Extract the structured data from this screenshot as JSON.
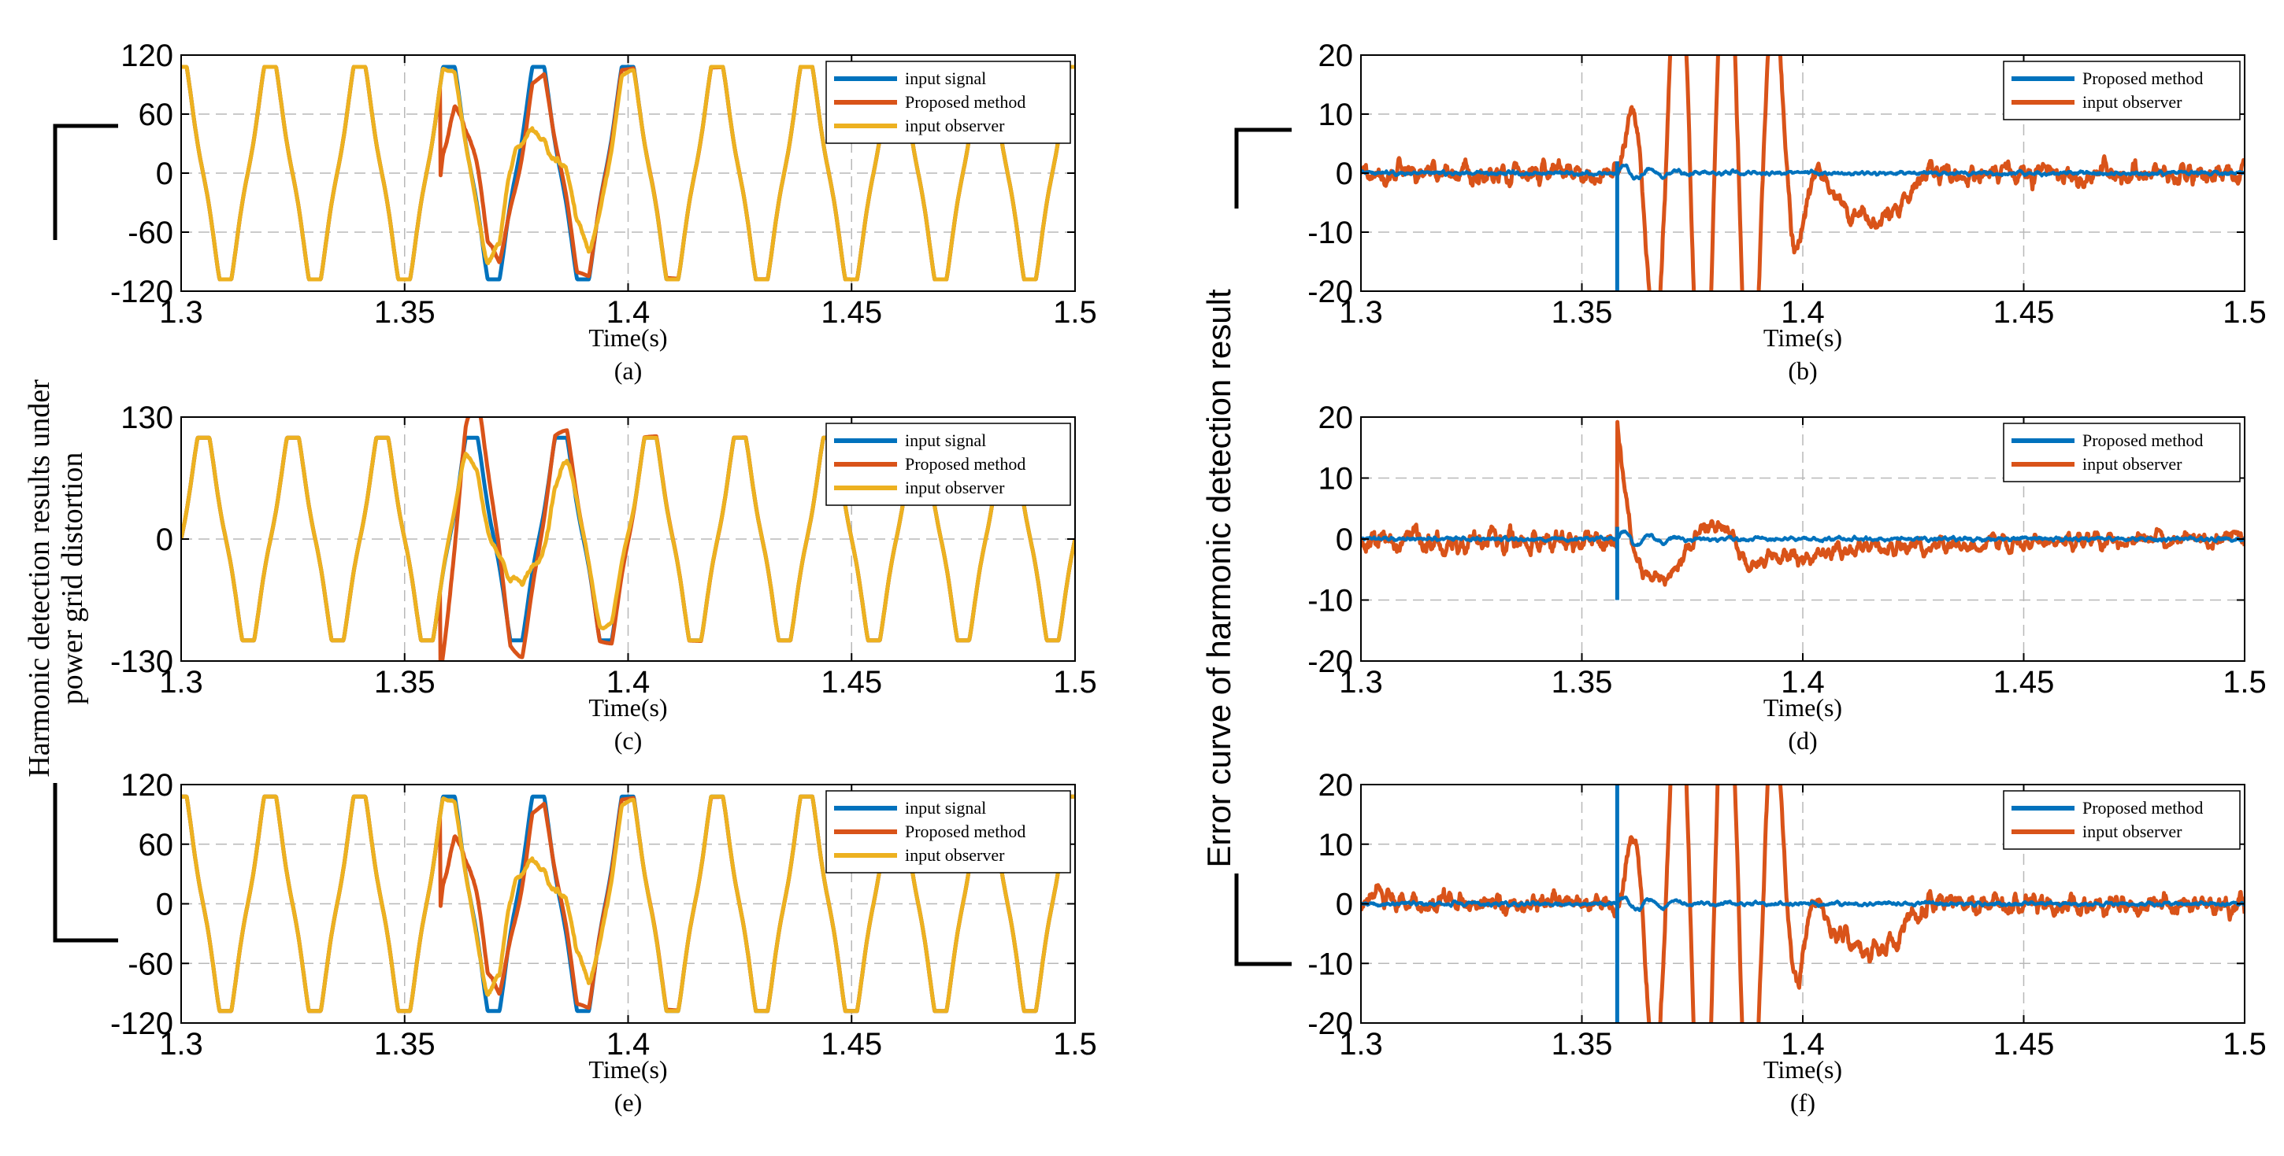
{
  "figure": {
    "left_ylabel_line1": "Harmonic detection results under",
    "left_ylabel_line2": "power grid distortion",
    "right_ylabel": "Error curve of harmonic detection result"
  },
  "colors": {
    "input_signal": "#0072BD",
    "proposed": "#D95319",
    "observer": "#EDB120",
    "grid": "#b8b8b8"
  },
  "chart_data": [
    {
      "id": "a",
      "panel_label": "(a)",
      "type": "line",
      "xlabel": "Time(s)",
      "xlim": [
        1.3,
        1.5
      ],
      "ylim": [
        -120,
        120
      ],
      "xticks": [
        1.3,
        1.35,
        1.4,
        1.45,
        1.5
      ],
      "xtick_labels": [
        "1.3",
        "1.35",
        "1.4",
        "1.45",
        "1.5"
      ],
      "yticks": [
        120,
        60,
        0,
        -60,
        -120
      ],
      "ytick_labels": [
        "120",
        "60",
        "0",
        "-60",
        "-120"
      ],
      "legend": [
        "input signal",
        "Proposed method",
        "input observer"
      ],
      "disturbance_time": 1.358,
      "signal_period": 0.02,
      "signal_amplitude": 108,
      "series": [
        {
          "name": "input signal",
          "color_key": "input_signal"
        },
        {
          "name": "Proposed method",
          "color_key": "proposed"
        },
        {
          "name": "input observer",
          "color_key": "observer"
        }
      ]
    },
    {
      "id": "b",
      "panel_label": "(b)",
      "type": "line",
      "xlabel": "Time(s)",
      "xlim": [
        1.3,
        1.5
      ],
      "ylim": [
        -20,
        20
      ],
      "xticks": [
        1.3,
        1.35,
        1.4,
        1.45,
        1.5
      ],
      "xtick_labels": [
        "1.3",
        "1.35",
        "1.4",
        "1.45",
        "1.5"
      ],
      "yticks": [
        20,
        10,
        0,
        -10,
        -20
      ],
      "ytick_labels": [
        "20",
        "10",
        "0",
        "-10",
        "-20"
      ],
      "legend": [
        "Proposed method",
        "input observer"
      ],
      "disturbance_time": 1.358,
      "series": [
        {
          "name": "Proposed method",
          "color_key": "input_signal"
        },
        {
          "name": "input observer",
          "color_key": "proposed"
        }
      ]
    },
    {
      "id": "c",
      "panel_label": "(c)",
      "type": "line",
      "xlabel": "Time(s)",
      "xlim": [
        1.3,
        1.5
      ],
      "ylim": [
        -130,
        130
      ],
      "xticks": [
        1.3,
        1.35,
        1.4,
        1.45,
        1.5
      ],
      "xtick_labels": [
        "1.3",
        "1.35",
        "1.4",
        "1.45",
        "1.5"
      ],
      "yticks": [
        130,
        0,
        -130
      ],
      "ytick_labels": [
        "130",
        "0",
        "-130"
      ],
      "legend": [
        "input signal",
        "Proposed method",
        "input observer"
      ],
      "disturbance_time": 1.358,
      "signal_period": 0.02,
      "signal_amplitude": 108,
      "series": [
        {
          "name": "input signal",
          "color_key": "input_signal"
        },
        {
          "name": "Proposed method",
          "color_key": "proposed"
        },
        {
          "name": "input observer",
          "color_key": "observer"
        }
      ]
    },
    {
      "id": "d",
      "panel_label": "(d)",
      "type": "line",
      "xlabel": "Time(s)",
      "xlim": [
        1.3,
        1.5
      ],
      "ylim": [
        -20,
        20
      ],
      "xticks": [
        1.3,
        1.35,
        1.4,
        1.45,
        1.5
      ],
      "xtick_labels": [
        "1.3",
        "1.35",
        "1.4",
        "1.45",
        "1.5"
      ],
      "yticks": [
        20,
        10,
        0,
        -10,
        -20
      ],
      "ytick_labels": [
        "20",
        "10",
        "0",
        "-10",
        "-20"
      ],
      "legend": [
        "Proposed method",
        "input observer"
      ],
      "disturbance_time": 1.358,
      "series": [
        {
          "name": "Proposed method",
          "color_key": "input_signal"
        },
        {
          "name": "input observer",
          "color_key": "proposed"
        }
      ]
    },
    {
      "id": "e",
      "panel_label": "(e)",
      "type": "line",
      "xlabel": "Time(s)",
      "xlim": [
        1.3,
        1.5
      ],
      "ylim": [
        -120,
        120
      ],
      "xticks": [
        1.3,
        1.35,
        1.4,
        1.45,
        1.5
      ],
      "xtick_labels": [
        "1.3",
        "1.35",
        "1.4",
        "1.45",
        "1.5"
      ],
      "yticks": [
        120,
        60,
        0,
        -60,
        -120
      ],
      "ytick_labels": [
        "120",
        "60",
        "0",
        "-60",
        "-120"
      ],
      "legend": [
        "input signal",
        "Proposed method",
        "input observer"
      ],
      "disturbance_time": 1.358,
      "signal_period": 0.02,
      "signal_amplitude": 108,
      "series": [
        {
          "name": "input signal",
          "color_key": "input_signal"
        },
        {
          "name": "Proposed method",
          "color_key": "proposed"
        },
        {
          "name": "input observer",
          "color_key": "observer"
        }
      ]
    },
    {
      "id": "f",
      "panel_label": "(f)",
      "type": "line",
      "xlabel": "Time(s)",
      "xlim": [
        1.3,
        1.5
      ],
      "ylim": [
        -20,
        20
      ],
      "xticks": [
        1.3,
        1.35,
        1.4,
        1.45,
        1.5
      ],
      "xtick_labels": [
        "1.3",
        "1.35",
        "1.4",
        "1.45",
        "1.5"
      ],
      "yticks": [
        20,
        10,
        0,
        -10,
        -20
      ],
      "ytick_labels": [
        "20",
        "10",
        "0",
        "-10",
        "-20"
      ],
      "legend": [
        "Proposed method",
        "input observer"
      ],
      "disturbance_time": 1.358,
      "series": [
        {
          "name": "Proposed method",
          "color_key": "input_signal"
        },
        {
          "name": "input observer",
          "color_key": "proposed"
        }
      ]
    }
  ]
}
